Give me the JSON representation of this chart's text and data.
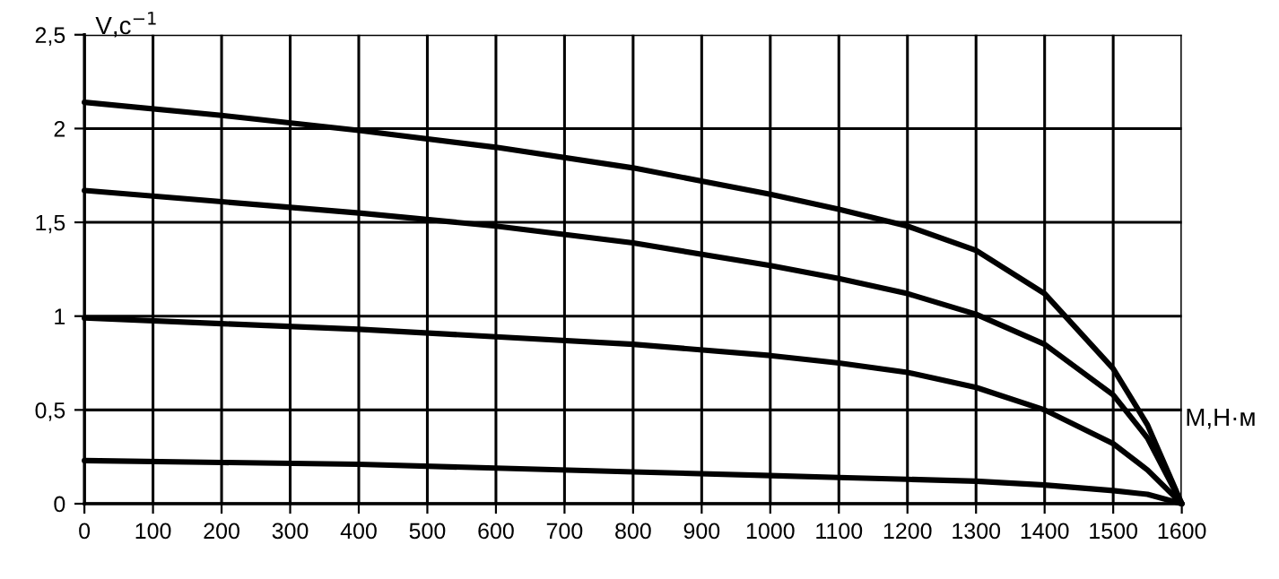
{
  "chart_data": {
    "type": "line",
    "xlabel": "М,Н·м",
    "ylabel": "V,с$^{−1}$",
    "x": [
      0,
      200,
      400,
      600,
      800,
      1000,
      1100,
      1200,
      1300,
      1400,
      1500,
      1550,
      1600
    ],
    "series": [
      {
        "color": "#000000",
        "values": [
          2.14,
          2.07,
          1.99,
          1.9,
          1.79,
          1.65,
          1.57,
          1.48,
          1.35,
          1.12,
          0.72,
          0.42,
          0
        ]
      },
      {
        "color": "#000000",
        "values": [
          1.67,
          1.61,
          1.55,
          1.48,
          1.39,
          1.27,
          1.2,
          1.12,
          1.01,
          0.85,
          0.58,
          0.35,
          0
        ]
      },
      {
        "color": "#000000",
        "values": [
          0.99,
          0.96,
          0.93,
          0.89,
          0.85,
          0.79,
          0.75,
          0.7,
          0.62,
          0.5,
          0.32,
          0.18,
          0
        ]
      },
      {
        "color": "#000000",
        "values": [
          0.23,
          0.22,
          0.21,
          0.19,
          0.17,
          0.15,
          0.14,
          0.13,
          0.12,
          0.1,
          0.07,
          0.05,
          0
        ]
      }
    ],
    "xlim": [
      0,
      1600
    ],
    "ylim": [
      0,
      2.5
    ],
    "xticks": [
      0,
      100,
      200,
      300,
      400,
      500,
      600,
      700,
      800,
      900,
      1000,
      1100,
      1200,
      1300,
      1400,
      1500,
      1600
    ],
    "yticks": [
      {
        "value": 0,
        "label": "0"
      },
      {
        "value": 0.5,
        "label": "0,5"
      },
      {
        "value": 1,
        "label": "1"
      },
      {
        "value": 1.5,
        "label": "1,5"
      },
      {
        "value": 2,
        "label": "2"
      },
      {
        "value": 2.5,
        "label": "2,5"
      }
    ],
    "grid": true,
    "marker": "none",
    "line_style": "solid"
  }
}
